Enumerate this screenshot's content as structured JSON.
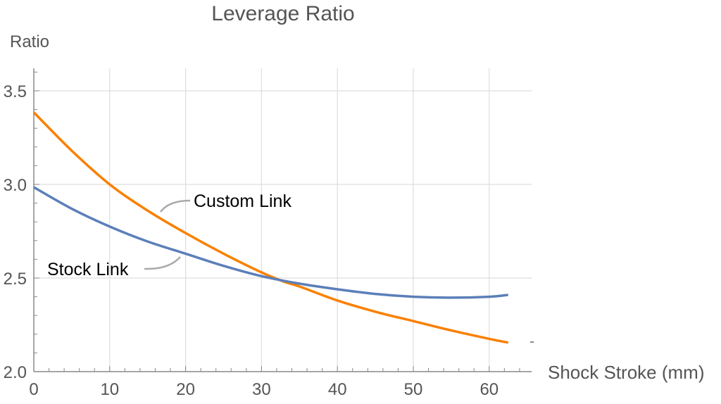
{
  "chart_data": {
    "type": "line",
    "title": "Leverage Ratio",
    "xlabel": "Shock Stroke (mm)",
    "ylabel": "Ratio",
    "xlim": [
      0,
      65.6
    ],
    "ylim": [
      2.0,
      3.62
    ],
    "xticks": [
      0,
      10,
      20,
      30,
      40,
      50,
      60
    ],
    "xtick_labels": [
      "0",
      "10",
      "20",
      "30",
      "40",
      "50",
      "60"
    ],
    "yticks": [
      2.0,
      2.5,
      3.0,
      3.5
    ],
    "ytick_labels": [
      "2.0",
      "2.5",
      "3.0",
      "3.5"
    ],
    "grid": true,
    "series": [
      {
        "name": "Custom Link",
        "color": "#f98000",
        "x": [
          0,
          5,
          10,
          15,
          20,
          25,
          30,
          33,
          35,
          40,
          45,
          50,
          55,
          60,
          62.5
        ],
        "y": [
          3.385,
          3.18,
          3.0,
          2.86,
          2.74,
          2.63,
          2.53,
          2.48,
          2.455,
          2.38,
          2.32,
          2.27,
          2.22,
          2.175,
          2.155
        ]
      },
      {
        "name": "Stock Link",
        "color": "#5b7fb9",
        "x": [
          0,
          5,
          10,
          15,
          20,
          25,
          30,
          35,
          40,
          45,
          50,
          55,
          60,
          62.5
        ],
        "y": [
          2.985,
          2.87,
          2.775,
          2.695,
          2.63,
          2.565,
          2.51,
          2.47,
          2.44,
          2.415,
          2.4,
          2.395,
          2.4,
          2.41
        ]
      }
    ]
  }
}
